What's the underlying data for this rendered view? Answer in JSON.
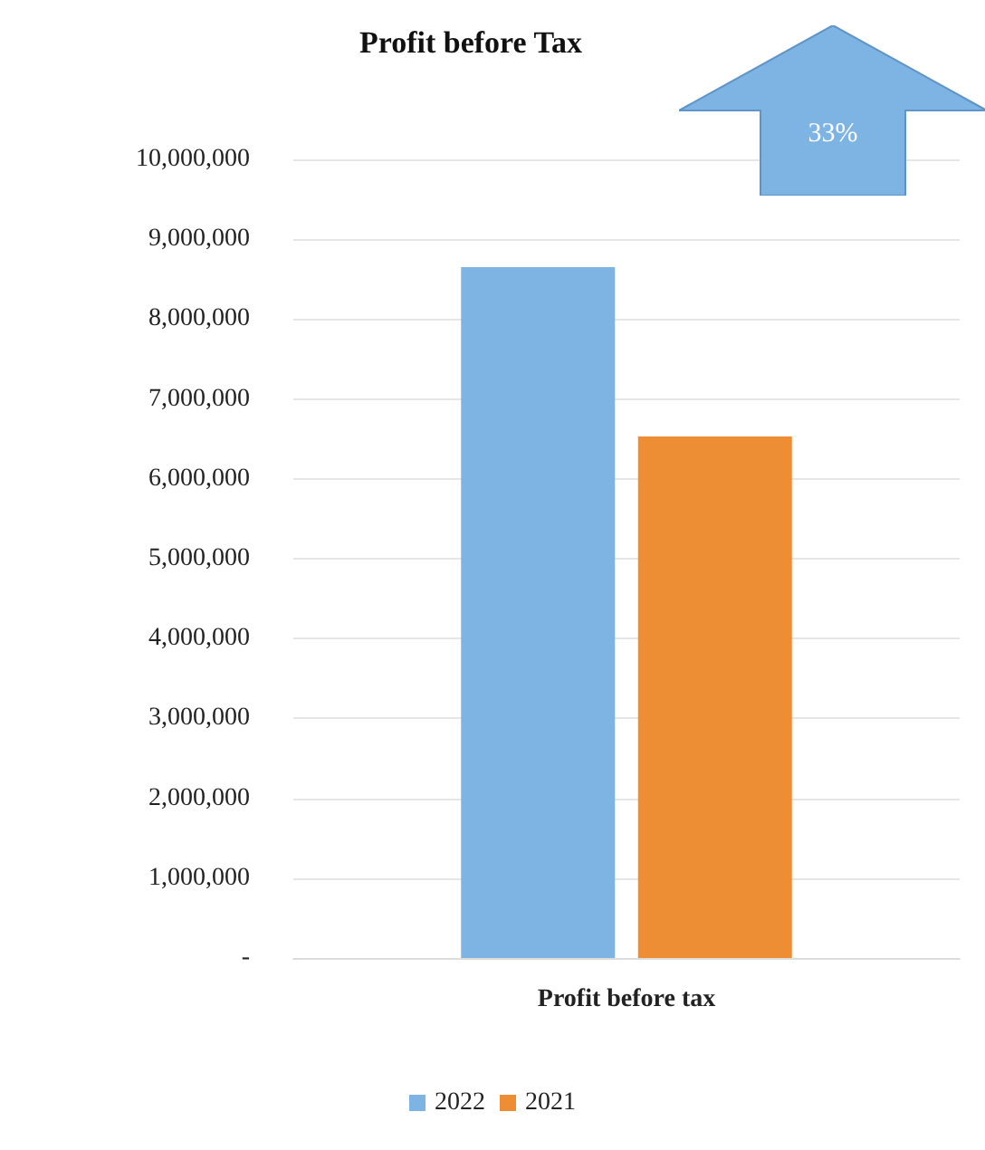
{
  "chart_data": {
    "type": "bar",
    "title": "Profit before Tax",
    "categories": [
      "Profit before tax"
    ],
    "series": [
      {
        "name": "2022",
        "color": "#7db4e3",
        "values": [
          8650000
        ]
      },
      {
        "name": "2021",
        "color": "#ee8e34",
        "values": [
          6530000
        ]
      }
    ],
    "ylim": [
      0,
      10000000
    ],
    "yticks": [
      {
        "value": 0,
        "label": "-"
      },
      {
        "value": 1000000,
        "label": "1,000,000"
      },
      {
        "value": 2000000,
        "label": "2,000,000"
      },
      {
        "value": 3000000,
        "label": "3,000,000"
      },
      {
        "value": 4000000,
        "label": "4,000,000"
      },
      {
        "value": 5000000,
        "label": "5,000,000"
      },
      {
        "value": 6000000,
        "label": "6,000,000"
      },
      {
        "value": 7000000,
        "label": "7,000,000"
      },
      {
        "value": 8000000,
        "label": "8,000,000"
      },
      {
        "value": 9000000,
        "label": "9,000,000"
      },
      {
        "value": 10000000,
        "label": "10,000,000"
      }
    ],
    "grid": "y",
    "legend": "bottom",
    "annotations": [
      "33%"
    ]
  }
}
